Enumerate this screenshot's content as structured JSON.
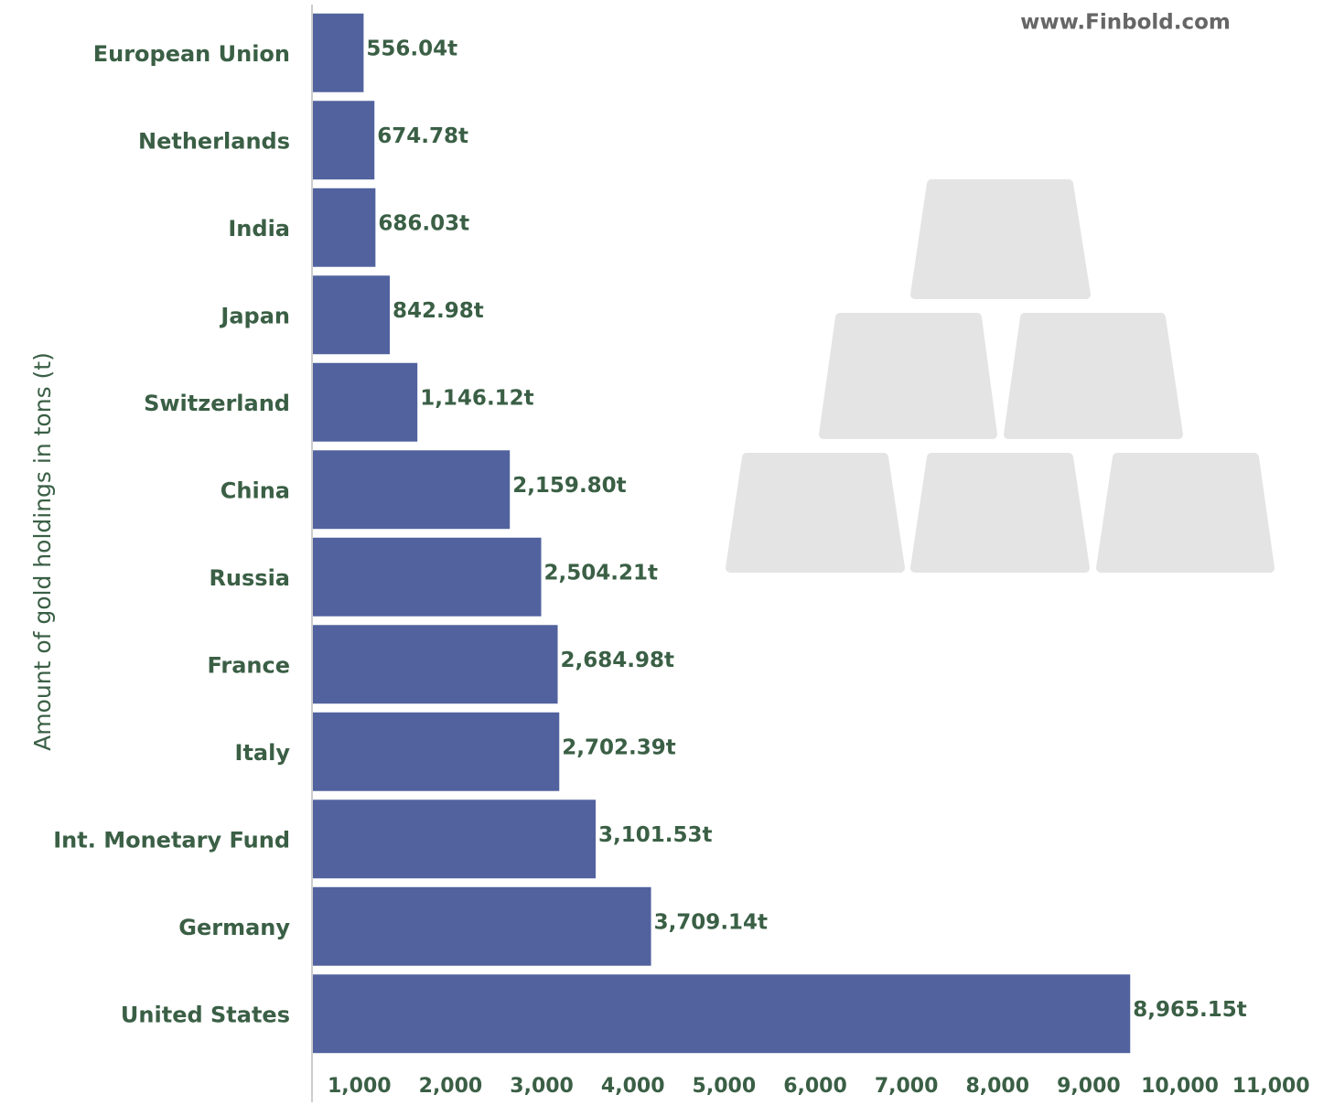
{
  "chart_data": {
    "type": "barh",
    "watermark": "www.Finbold.com",
    "y_label": "Amount of gold holdings in tons (t)",
    "categories": [
      "European Union",
      "Netherlands",
      "India",
      "Japan",
      "Switzerland",
      "China",
      "Russia",
      "France",
      "Italy",
      "Int. Monetary Fund",
      "Germany",
      "United States"
    ],
    "values": [
      556.04,
      674.78,
      686.03,
      842.98,
      1146.12,
      2159.8,
      2504.21,
      2684.98,
      2702.39,
      3101.53,
      3709.14,
      8965.15
    ],
    "value_labels": [
      "556.04t",
      "674.78t",
      "686.03t",
      "842.98t",
      "1,146.12t",
      "2,159.80t",
      "2,504.21t",
      "2,684.98t",
      "2,702.39t",
      "3,101.53t",
      "3,709.14t",
      "8,965.15t"
    ],
    "color": "#51629e",
    "xlim": [
      0,
      11000
    ],
    "xticks": [
      {
        "value": 1000,
        "label": "1,000"
      },
      {
        "value": 2000,
        "label": "2,000"
      },
      {
        "value": 3000,
        "label": "3,000"
      },
      {
        "value": 4000,
        "label": "4,000"
      },
      {
        "value": 5000,
        "label": "5,000"
      },
      {
        "value": 6000,
        "label": "6,000"
      },
      {
        "value": 7000,
        "label": "7,000"
      },
      {
        "value": 8000,
        "label": "8,000"
      },
      {
        "value": 9000,
        "label": "9,000"
      },
      {
        "value": 10000,
        "label": "10,000"
      },
      {
        "value": 11000,
        "label": "11,000"
      }
    ],
    "grid": false
  }
}
